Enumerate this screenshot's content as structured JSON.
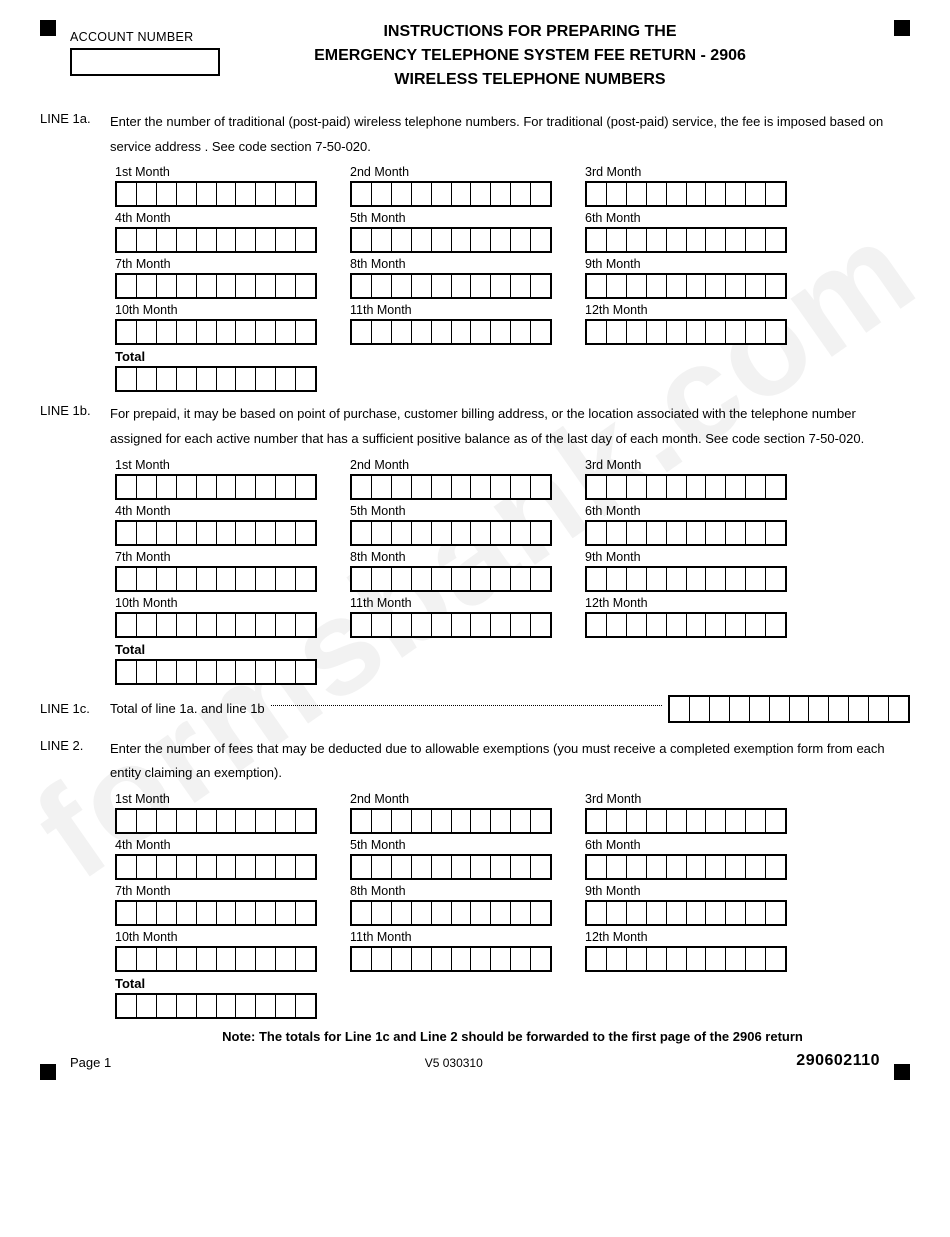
{
  "watermark": "formsbank.com",
  "account_label": "ACCOUNT NUMBER",
  "title_line1": "INSTRUCTIONS FOR PREPARING THE",
  "title_line2": "EMERGENCY TELEPHONE SYSTEM FEE RETURN - 2906",
  "title_line3": "WIRELESS TELEPHONE NUMBERS",
  "months": [
    "1st Month",
    "2nd Month",
    "3rd Month",
    "4th Month",
    "5th Month",
    "6th Month",
    "7th Month",
    "8th Month",
    "9th Month",
    "10th Month",
    "11th Month",
    "12th Month"
  ],
  "total_label": "Total",
  "cells_per_box": 10,
  "cells_1c": 12,
  "line_1a": {
    "label": "LINE 1a.",
    "text": "Enter the number of traditional (post-paid) wireless telephone numbers.  For traditional (post-paid) service, the fee is imposed based on service address . See code section 7-50-020."
  },
  "line_1b": {
    "label": "LINE 1b.",
    "text": "For prepaid, it may be based on point of purchase, customer billing address, or the location associated with the telephone number assigned for each active number that has a sufficient positive balance as of the last day of each month. See code section 7-50-020."
  },
  "line_1c": {
    "label": "LINE 1c.",
    "text": "Total of line 1a. and line 1b"
  },
  "line_2": {
    "label": "LINE 2.",
    "text": "Enter the number of fees that may be deducted due to allowable exemptions (you must receive a completed exemption form from each entity claiming an exemption)."
  },
  "note": "Note: The totals for Line 1c and Line 2 should be forwarded to the first page of the 2906 return",
  "footer": {
    "page": "Page 1",
    "version": "V5 030310",
    "code": "290602110"
  }
}
